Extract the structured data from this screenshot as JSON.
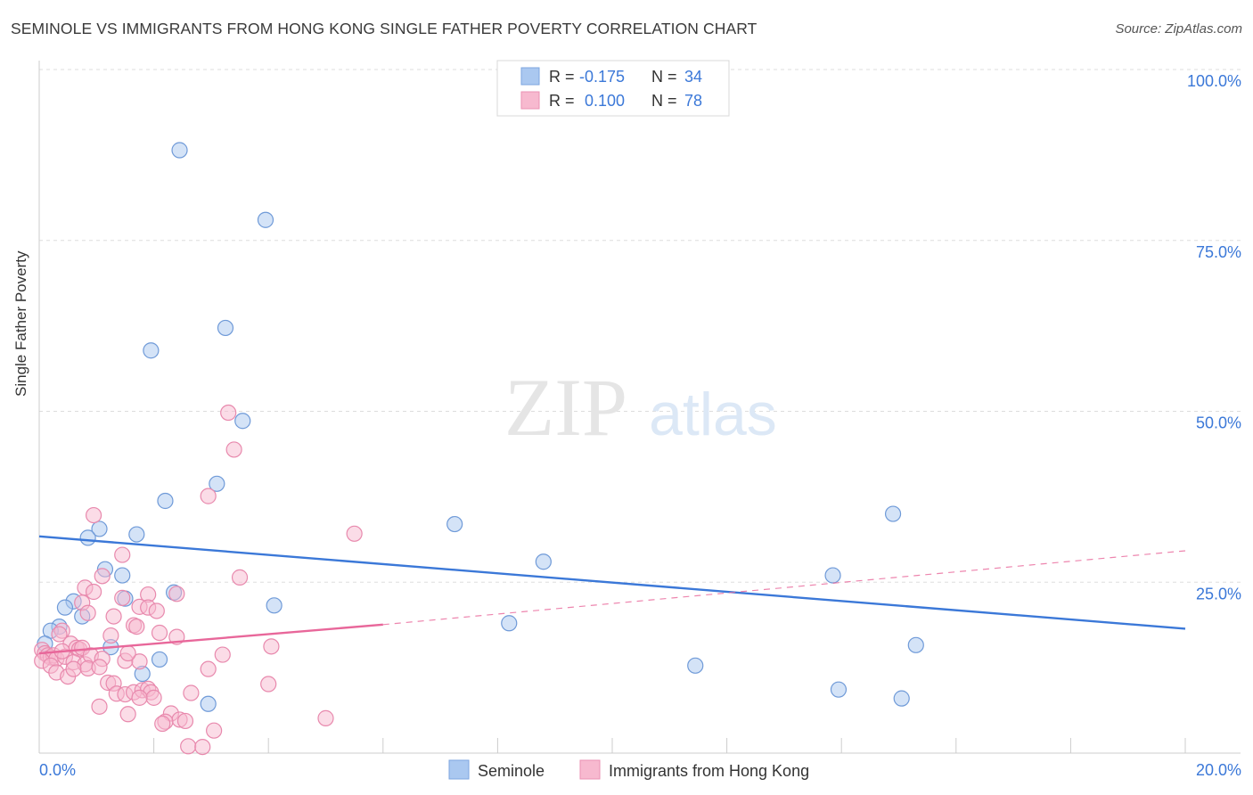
{
  "title": "SEMINOLE VS IMMIGRANTS FROM HONG KONG SINGLE FATHER POVERTY CORRELATION CHART",
  "source": "Source: ZipAtlas.com",
  "watermark": {
    "zip": "ZIP",
    "atlas": "atlas"
  },
  "colors": {
    "blue": "#3b78d8",
    "blue_fill": "#aac8f0",
    "pink": "#e8679a",
    "pink_fill": "#f7b9cf",
    "axis_label": "#3b78d8",
    "grid": "#dddddd"
  },
  "legend_top": {
    "rows": [
      {
        "r_label": "R =",
        "r_value": "-0.175",
        "n_label": "N =",
        "n_value": "34"
      },
      {
        "r_label": "R =",
        "r_value": "0.100",
        "n_label": "N =",
        "n_value": "78"
      }
    ]
  },
  "legend_bottom": {
    "items": [
      {
        "label": "Seminole"
      },
      {
        "label": "Immigrants from Hong Kong"
      }
    ]
  },
  "chart_data": {
    "type": "scatter",
    "title": "SEMINOLE VS IMMIGRANTS FROM HONG KONG SINGLE FATHER POVERTY CORRELATION CHART",
    "xlabel": "",
    "ylabel": "Single Father Poverty",
    "xlim": [
      0,
      20
    ],
    "ylim": [
      0,
      100
    ],
    "x_tick_labels": [
      "0.0%",
      "20.0%"
    ],
    "y_tick_labels": [
      "25.0%",
      "50.0%",
      "75.0%",
      "100.0%"
    ],
    "y_ticks": [
      25,
      50,
      75,
      100
    ],
    "grid": true,
    "series": [
      {
        "name": "Seminole",
        "r": -0.175,
        "n": 34,
        "trend": {
          "x0": 0,
          "y0": 31.7,
          "x1": 20,
          "y1": 18.2
        },
        "points": [
          [
            2.45,
            88.2
          ],
          [
            3.95,
            78.0
          ],
          [
            3.25,
            62.2
          ],
          [
            1.95,
            58.9
          ],
          [
            3.55,
            48.6
          ],
          [
            3.1,
            39.4
          ],
          [
            2.2,
            36.9
          ],
          [
            7.25,
            33.5
          ],
          [
            1.05,
            32.8
          ],
          [
            0.85,
            31.5
          ],
          [
            1.7,
            32.0
          ],
          [
            8.8,
            28.0
          ],
          [
            1.15,
            26.9
          ],
          [
            1.45,
            26.0
          ],
          [
            13.85,
            26.0
          ],
          [
            1.5,
            22.6
          ],
          [
            2.35,
            23.5
          ],
          [
            0.6,
            22.2
          ],
          [
            0.45,
            21.3
          ],
          [
            4.1,
            21.6
          ],
          [
            0.75,
            20.0
          ],
          [
            0.35,
            18.5
          ],
          [
            0.2,
            17.9
          ],
          [
            8.2,
            19.0
          ],
          [
            0.1,
            16.0
          ],
          [
            1.25,
            15.5
          ],
          [
            15.3,
            15.8
          ],
          [
            2.1,
            13.7
          ],
          [
            11.45,
            12.8
          ],
          [
            1.8,
            11.6
          ],
          [
            13.95,
            9.3
          ],
          [
            15.05,
            8.0
          ],
          [
            2.95,
            7.2
          ],
          [
            14.9,
            35.0
          ]
        ]
      },
      {
        "name": "Immigrants from Hong Kong",
        "r": 0.1,
        "n": 78,
        "trend": {
          "x0": 0,
          "y0": 14.6,
          "x1": 6.0,
          "y1": 18.8
        },
        "trend_dashed": {
          "x0": 6.0,
          "y0": 18.8,
          "x1": 20,
          "y1": 29.6
        },
        "points": [
          [
            3.3,
            49.8
          ],
          [
            3.4,
            44.4
          ],
          [
            2.95,
            37.6
          ],
          [
            0.95,
            34.8
          ],
          [
            5.5,
            32.1
          ],
          [
            1.45,
            29.0
          ],
          [
            3.5,
            25.7
          ],
          [
            1.1,
            25.9
          ],
          [
            0.8,
            24.2
          ],
          [
            0.95,
            23.6
          ],
          [
            1.9,
            23.2
          ],
          [
            2.4,
            23.3
          ],
          [
            1.45,
            22.7
          ],
          [
            0.75,
            22.0
          ],
          [
            1.75,
            21.4
          ],
          [
            1.9,
            21.3
          ],
          [
            2.05,
            20.8
          ],
          [
            0.85,
            20.5
          ],
          [
            1.3,
            20.0
          ],
          [
            1.65,
            18.7
          ],
          [
            1.7,
            18.5
          ],
          [
            0.4,
            17.9
          ],
          [
            0.35,
            17.4
          ],
          [
            2.1,
            17.6
          ],
          [
            2.4,
            17.0
          ],
          [
            1.25,
            17.2
          ],
          [
            0.55,
            16.0
          ],
          [
            0.65,
            15.4
          ],
          [
            0.7,
            15.2
          ],
          [
            0.75,
            15.4
          ],
          [
            0.05,
            15.1
          ],
          [
            0.1,
            14.6
          ],
          [
            0.15,
            14.3
          ],
          [
            0.2,
            14.0
          ],
          [
            0.25,
            14.3
          ],
          [
            0.3,
            13.8
          ],
          [
            0.05,
            13.5
          ],
          [
            0.45,
            14.1
          ],
          [
            0.6,
            13.3
          ],
          [
            0.8,
            13.0
          ],
          [
            0.9,
            14.3
          ],
          [
            1.1,
            13.8
          ],
          [
            1.5,
            13.5
          ],
          [
            1.75,
            13.4
          ],
          [
            3.2,
            14.4
          ],
          [
            4.05,
            15.6
          ],
          [
            0.2,
            12.8
          ],
          [
            0.3,
            11.8
          ],
          [
            0.5,
            11.2
          ],
          [
            0.6,
            12.3
          ],
          [
            0.85,
            12.4
          ],
          [
            1.05,
            12.6
          ],
          [
            2.95,
            12.3
          ],
          [
            1.2,
            10.3
          ],
          [
            1.3,
            10.2
          ],
          [
            4.0,
            10.1
          ],
          [
            1.35,
            8.7
          ],
          [
            1.5,
            8.6
          ],
          [
            1.65,
            8.9
          ],
          [
            1.8,
            9.2
          ],
          [
            1.9,
            9.4
          ],
          [
            1.95,
            8.9
          ],
          [
            2.0,
            8.1
          ],
          [
            2.65,
            8.8
          ],
          [
            1.75,
            8.1
          ],
          [
            1.05,
            6.8
          ],
          [
            1.55,
            5.7
          ],
          [
            2.3,
            5.8
          ],
          [
            2.45,
            4.9
          ],
          [
            2.55,
            4.7
          ],
          [
            2.2,
            4.6
          ],
          [
            2.15,
            4.3
          ],
          [
            5.0,
            5.1
          ],
          [
            3.05,
            3.3
          ],
          [
            2.6,
            1.0
          ],
          [
            2.85,
            0.9
          ],
          [
            0.4,
            14.9
          ],
          [
            1.55,
            14.6
          ]
        ]
      }
    ]
  }
}
